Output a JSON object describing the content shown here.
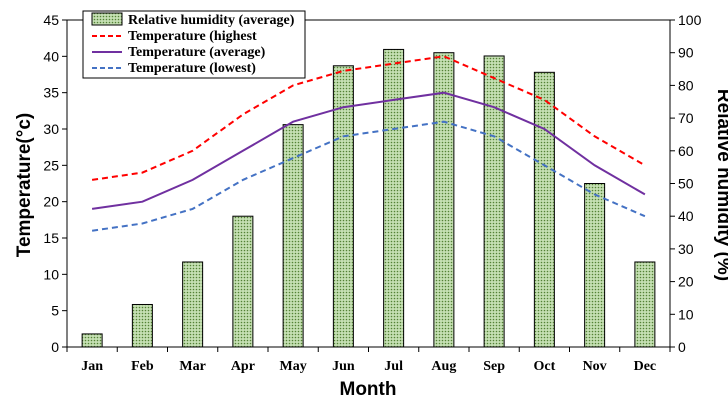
{
  "chart_data": {
    "type": "bar-line",
    "categories": [
      "Jan",
      "Feb",
      "Mar",
      "Apr",
      "May",
      "Jun",
      "Jul",
      "Aug",
      "Sep",
      "Oct",
      "Nov",
      "Dec"
    ],
    "xlabel": "Month",
    "ylabel_left": "Temperature(°c)",
    "ylabel_right": "Relative humidity (%)",
    "ylim_left": [
      0,
      45
    ],
    "ylim_right": [
      0,
      100
    ],
    "yticks_left": [
      "0",
      "5",
      "10",
      "15",
      "20",
      "25",
      "30",
      "35",
      "40",
      "45"
    ],
    "yticks_right": [
      "0",
      "10",
      "20",
      "30",
      "40",
      "50",
      "60",
      "70",
      "80",
      "90",
      "100"
    ],
    "legend_position": "top-left",
    "grid": false,
    "bar_series": {
      "name": "Relative humidity (average)",
      "axis": "right",
      "values": [
        4,
        13,
        26,
        40,
        68,
        86,
        91,
        90,
        89,
        84,
        50,
        26
      ],
      "color": "#a8d08d"
    },
    "line_series": [
      {
        "name": "Temperature (highest",
        "axis": "left",
        "style": "dashed",
        "color": "#ff0000",
        "values": [
          23,
          24,
          27,
          32,
          36,
          38,
          39,
          40,
          37,
          34,
          29,
          25
        ]
      },
      {
        "name": "Temperature (average)",
        "axis": "left",
        "style": "solid",
        "color": "#7030a0",
        "values": [
          19,
          20,
          23,
          27,
          31,
          33,
          34,
          35,
          33,
          30,
          25,
          21
        ]
      },
      {
        "name": "Temperature (lowest)",
        "axis": "left",
        "style": "dashed",
        "color": "#4472c4",
        "values": [
          16,
          17,
          19,
          23,
          26,
          29,
          30,
          31,
          29,
          25,
          21,
          18
        ]
      }
    ]
  }
}
